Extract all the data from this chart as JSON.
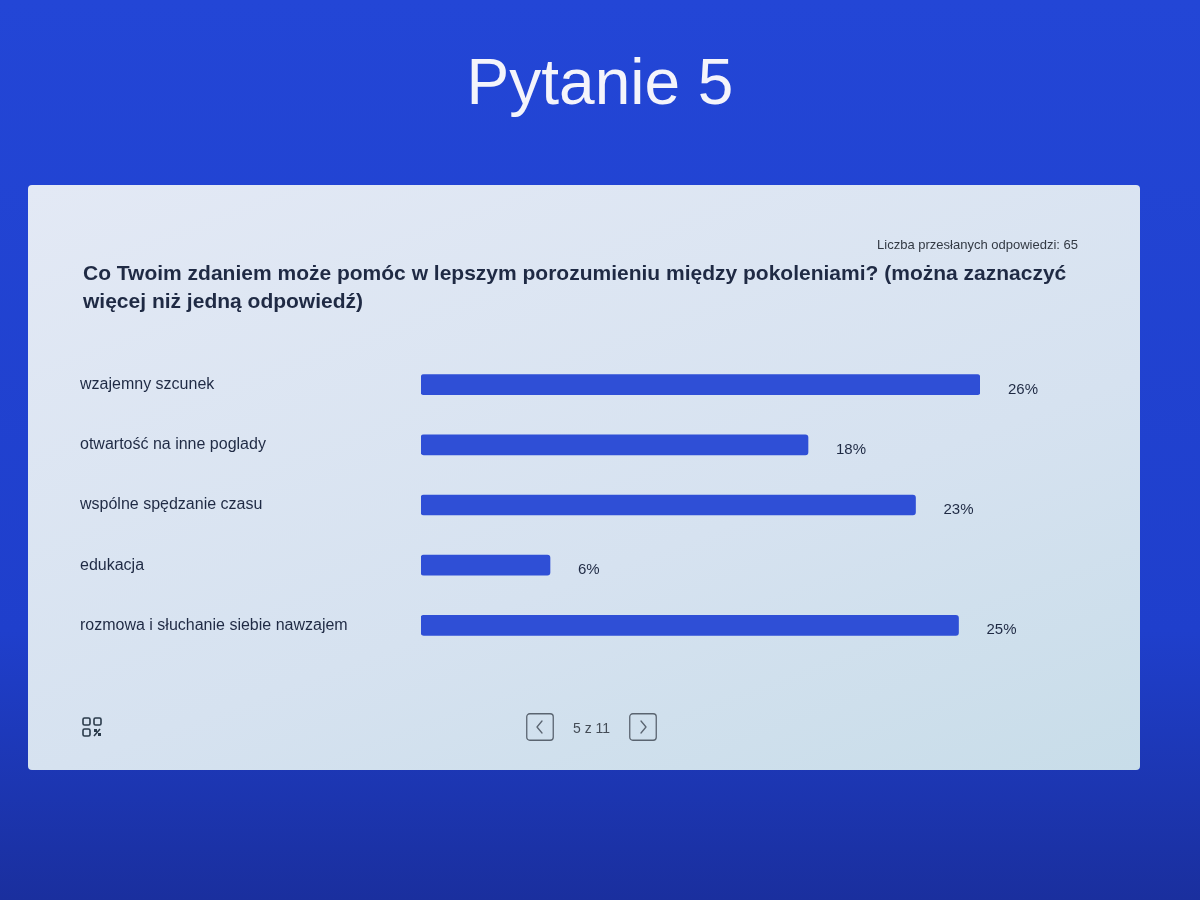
{
  "chart_data": {
    "type": "bar",
    "orientation": "horizontal",
    "title": "Pytanie 5",
    "subtitle": "Co Twoim zdaniem może pomóc w lepszym porozumieniu między pokoleniami? (można zaznaczyć więcej niż jedną odpowiedź)",
    "annotations": [
      "Liczba przesłanych odpowiedzi: 65",
      "5 z 11"
    ],
    "categories": [
      "wzajemny szcunek",
      "otwartość na inne poglady",
      "wspólne spędzanie czasu",
      "edukacja",
      "rozmowa i słuchanie siebie nawzajem"
    ],
    "values": [
      26,
      18,
      23,
      6,
      25
    ],
    "value_labels": [
      "26%",
      "18%",
      "23%",
      "6%",
      "25%"
    ],
    "color": "#2f4fd6",
    "xlim": [
      0,
      26
    ],
    "tick_labels": "y"
  }
}
